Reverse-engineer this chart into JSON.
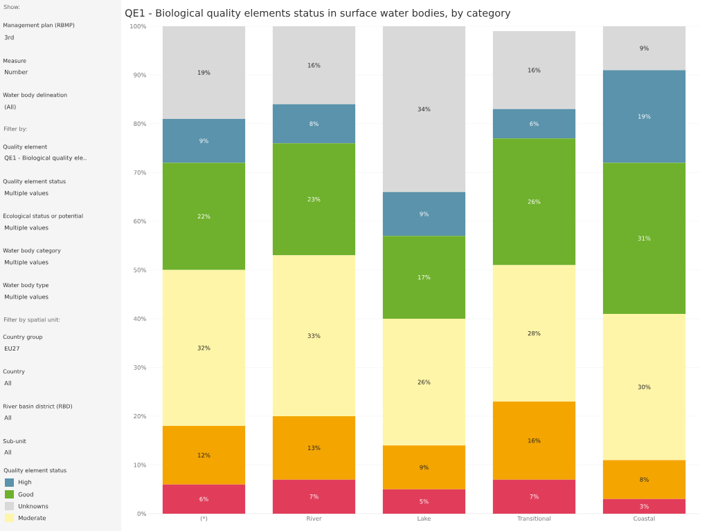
{
  "chart_data": {
    "type": "bar",
    "stacked": true,
    "title": "QE1 - Biological quality elements status in surface water bodies, by category",
    "categories": [
      "(*)",
      "River",
      "Lake",
      "Transitional",
      "Coastal"
    ],
    "series": [
      {
        "color": "#e13d5b",
        "values": [
          6,
          7,
          5,
          7,
          3
        ],
        "value_labels": [
          "6%",
          "7%",
          "5%",
          "7%",
          "3%"
        ]
      },
      {
        "color": "#f4a500",
        "values": [
          12,
          13,
          9,
          16,
          8
        ],
        "value_labels": [
          "12%",
          "13%",
          "9%",
          "16%",
          "8%"
        ]
      },
      {
        "name": "Moderate",
        "color": "#fff5a8",
        "values": [
          32,
          33,
          26,
          28,
          30
        ],
        "value_labels": [
          "32%",
          "33%",
          "26%",
          "28%",
          "30%"
        ]
      },
      {
        "name": "Good",
        "color": "#6fb12d",
        "values": [
          22,
          23,
          17,
          26,
          31
        ],
        "value_labels": [
          "22%",
          "23%",
          "17%",
          "26%",
          "31%"
        ]
      },
      {
        "name": "High",
        "color": "#5a93ab",
        "values": [
          9,
          8,
          9,
          6,
          19
        ],
        "value_labels": [
          "9%",
          "8%",
          "9%",
          "6%",
          "19%"
        ]
      },
      {
        "name": "Unknowns",
        "color": "#d9d9d9",
        "values": [
          19,
          16,
          34,
          16,
          9
        ],
        "value_labels": [
          "19%",
          "16%",
          "34%",
          "16%",
          "9%"
        ]
      }
    ],
    "ylim": [
      0,
      100
    ],
    "yticks": [
      {
        "value": 0,
        "label": "0%"
      },
      {
        "value": 10,
        "label": "10%"
      },
      {
        "value": 20,
        "label": "20%"
      },
      {
        "value": 30,
        "label": "30%"
      },
      {
        "value": 40,
        "label": "40%"
      },
      {
        "value": 50,
        "label": "50%"
      },
      {
        "value": 60,
        "label": "60%"
      },
      {
        "value": 70,
        "label": "70%"
      },
      {
        "value": 80,
        "label": "80%"
      },
      {
        "value": 90,
        "label": "90%"
      },
      {
        "value": 100,
        "label": "100%"
      }
    ],
    "grid": "y",
    "legend": "left",
    "legend_title": "Quality element status",
    "annotations": [
      "Show:",
      "Management plan (RBMP)",
      "3rd",
      "Measure",
      "Number",
      "Water body delineation",
      "(All)",
      "Filter by:",
      "Quality element",
      "QE1 - Biological quality ele..",
      "Quality element status",
      "Multiple values",
      "Ecological status or potential",
      "Multiple values",
      "Water body category",
      "Multiple values",
      "Water body type",
      "Multiple values",
      "Filter by spatial unit:",
      "Country group",
      "EU27",
      "Country",
      "All",
      "River basin district (RBD)",
      "All",
      "Sub-unit",
      "All"
    ]
  }
}
